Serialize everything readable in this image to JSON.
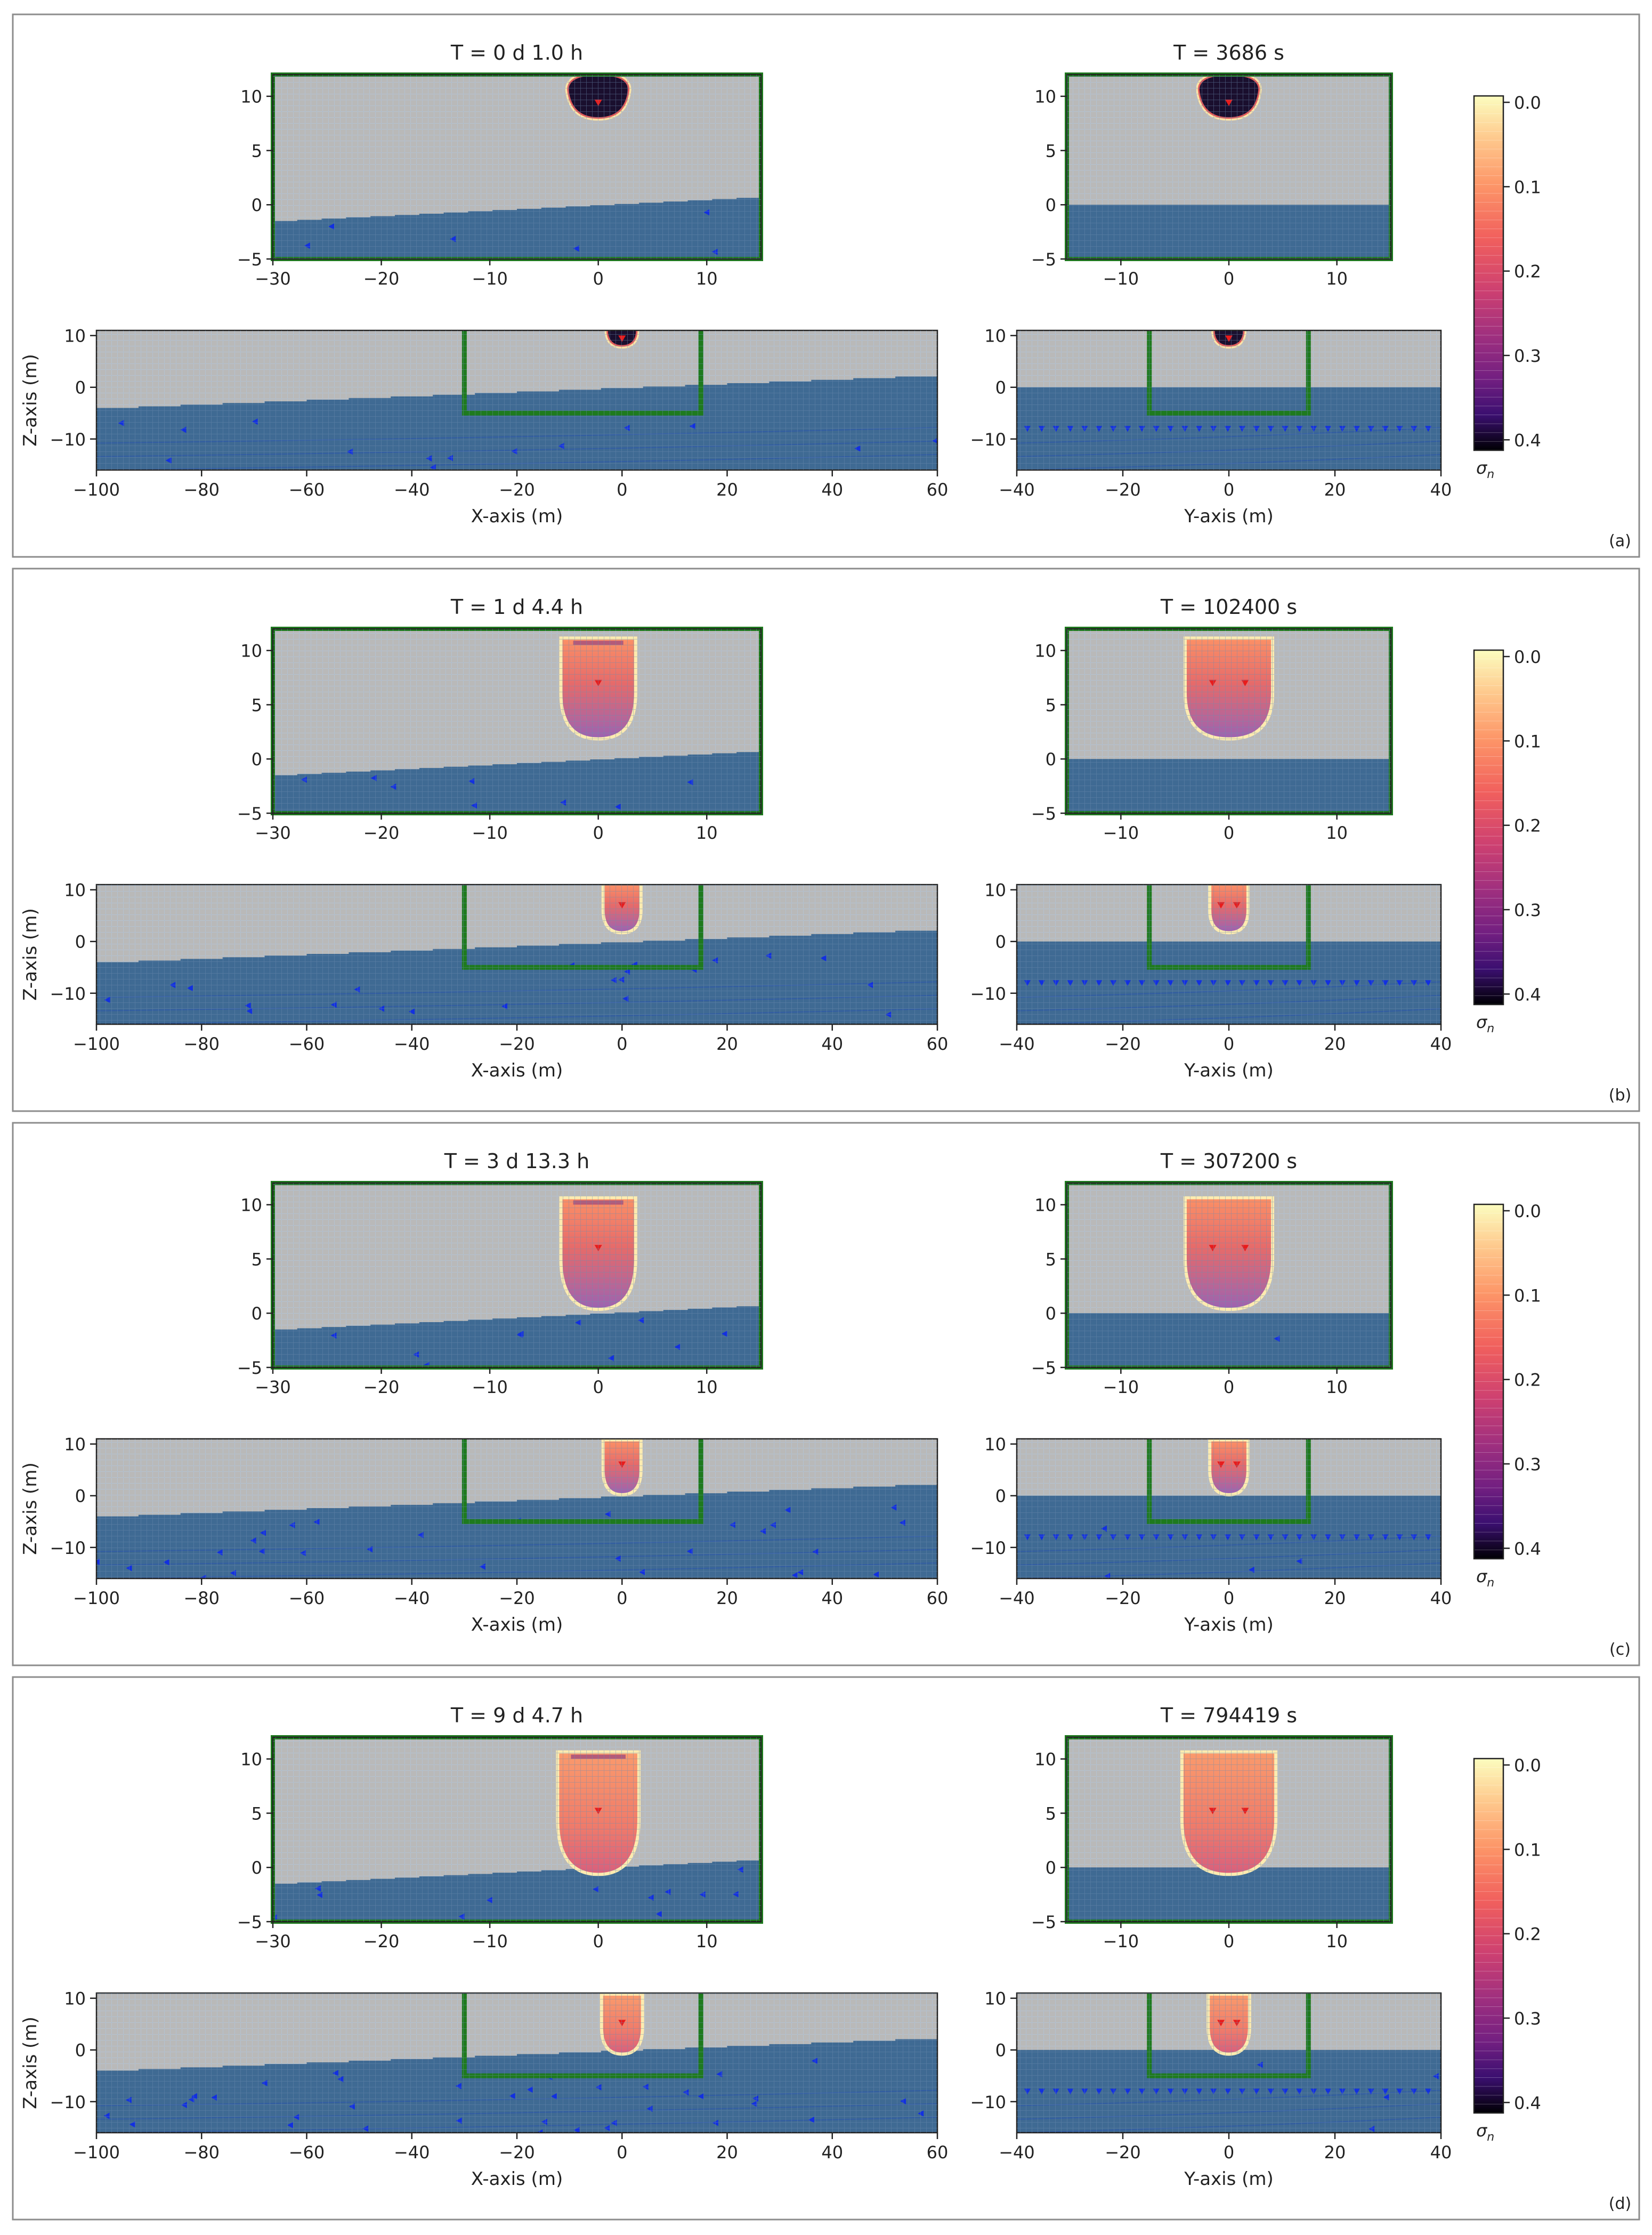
{
  "figure": {
    "panels": [
      {
        "label": "(a)",
        "titles": {
          "x_detail": "T = 0 d  1.0 h",
          "y_detail": "T = 3686 s"
        }
      },
      {
        "label": "(b)",
        "titles": {
          "x_detail": "T = 1 d  4.4 h",
          "y_detail": "T = 102400 s"
        }
      },
      {
        "label": "(c)",
        "titles": {
          "x_detail": "T = 3 d 13.3 h",
          "y_detail": "T = 307200 s"
        }
      },
      {
        "label": "(d)",
        "titles": {
          "x_detail": "T = 9 d  4.7 h",
          "y_detail": "T = 794419 s"
        }
      }
    ],
    "axis_labels": {
      "x_axis": "X-axis (m)",
      "y_axis": "Y-axis (m)",
      "z_axis": "Z-axis (m)"
    },
    "colorbar": {
      "label": "σ",
      "label_subscript": "n",
      "ticks": [
        "0.0",
        "0.1",
        "0.2",
        "0.3",
        "0.4"
      ],
      "range": [
        0.0,
        0.42
      ],
      "colormap": "magma"
    },
    "colors": {
      "background_gray": "#b9b9b9",
      "grid_line": "#e6e6e6",
      "water_blue": "#3f6a93",
      "domain_box": "#1e7a1e",
      "markers": "#1230e0",
      "source_marker": "#e81c1c"
    }
  },
  "chart_data": [
    {
      "type": "heatmap",
      "panel": "(a)",
      "view": "X-Z detail",
      "title": "T = 0 d  1.0 h",
      "xlim": [
        -30,
        15
      ],
      "ylim": [
        -5,
        12
      ],
      "xticks": [
        -30,
        -20,
        -10,
        0,
        10
      ],
      "yticks": [
        -5,
        0,
        5,
        10
      ]
    },
    {
      "type": "heatmap",
      "panel": "(a)",
      "view": "Y-Z detail",
      "title": "T = 3686 s",
      "xlim": [
        -15,
        15
      ],
      "ylim": [
        -5,
        12
      ],
      "xticks": [
        -10,
        0,
        10
      ],
      "yticks": [
        -5,
        0,
        5,
        10
      ]
    },
    {
      "type": "heatmap",
      "panel": "(a)",
      "view": "X-Z full",
      "xlabel": "X-axis (m)",
      "ylabel": "Z-axis (m)",
      "xlim": [
        -100,
        60
      ],
      "ylim": [
        -16,
        11
      ],
      "xticks": [
        -100,
        -80,
        -60,
        -40,
        -20,
        0,
        20,
        40,
        60
      ],
      "yticks": [
        -10,
        0,
        10
      ]
    },
    {
      "type": "heatmap",
      "panel": "(a)",
      "view": "Y-Z full",
      "xlabel": "Y-axis (m)",
      "xlim": [
        -40,
        40
      ],
      "ylim": [
        -16,
        11
      ],
      "xticks": [
        -40,
        -20,
        0,
        20,
        40
      ],
      "yticks": [
        -10,
        0,
        10
      ]
    },
    {
      "type": "heatmap",
      "panel": "(b)",
      "view": "X-Z detail",
      "title": "T = 1 d  4.4 h",
      "xlim": [
        -30,
        15
      ],
      "ylim": [
        -5,
        12
      ]
    },
    {
      "type": "heatmap",
      "panel": "(b)",
      "view": "Y-Z detail",
      "title": "T = 102400 s",
      "xlim": [
        -15,
        15
      ],
      "ylim": [
        -5,
        12
      ]
    },
    {
      "type": "heatmap",
      "panel": "(b)",
      "view": "X-Z full",
      "xlabel": "X-axis (m)",
      "ylabel": "Z-axis (m)",
      "xlim": [
        -100,
        60
      ],
      "ylim": [
        -16,
        11
      ]
    },
    {
      "type": "heatmap",
      "panel": "(b)",
      "view": "Y-Z full",
      "xlabel": "Y-axis (m)",
      "xlim": [
        -40,
        40
      ],
      "ylim": [
        -16,
        11
      ]
    },
    {
      "type": "heatmap",
      "panel": "(c)",
      "view": "X-Z detail",
      "title": "T = 3 d 13.3 h",
      "xlim": [
        -30,
        15
      ],
      "ylim": [
        -5,
        12
      ]
    },
    {
      "type": "heatmap",
      "panel": "(c)",
      "view": "Y-Z detail",
      "title": "T = 307200 s",
      "xlim": [
        -15,
        15
      ],
      "ylim": [
        -5,
        12
      ]
    },
    {
      "type": "heatmap",
      "panel": "(c)",
      "view": "X-Z full",
      "xlabel": "X-axis (m)",
      "ylabel": "Z-axis (m)",
      "xlim": [
        -100,
        60
      ],
      "ylim": [
        -16,
        11
      ]
    },
    {
      "type": "heatmap",
      "panel": "(c)",
      "view": "Y-Z full",
      "xlabel": "Y-axis (m)",
      "xlim": [
        -40,
        40
      ],
      "ylim": [
        -16,
        11
      ]
    },
    {
      "type": "heatmap",
      "panel": "(d)",
      "view": "X-Z detail",
      "title": "T = 9 d  4.7 h",
      "xlim": [
        -30,
        15
      ],
      "ylim": [
        -5,
        12
      ]
    },
    {
      "type": "heatmap",
      "panel": "(d)",
      "view": "Y-Z detail",
      "title": "T = 794419 s",
      "xlim": [
        -15,
        15
      ],
      "ylim": [
        -5,
        12
      ]
    },
    {
      "type": "heatmap",
      "panel": "(d)",
      "view": "X-Z full",
      "xlabel": "X-axis (m)",
      "ylabel": "Z-axis (m)",
      "xlim": [
        -100,
        60
      ],
      "ylim": [
        -16,
        11
      ]
    },
    {
      "type": "heatmap",
      "panel": "(d)",
      "view": "Y-Z full",
      "xlabel": "Y-axis (m)",
      "xlim": [
        -40,
        40
      ],
      "ylim": [
        -16,
        11
      ]
    }
  ]
}
